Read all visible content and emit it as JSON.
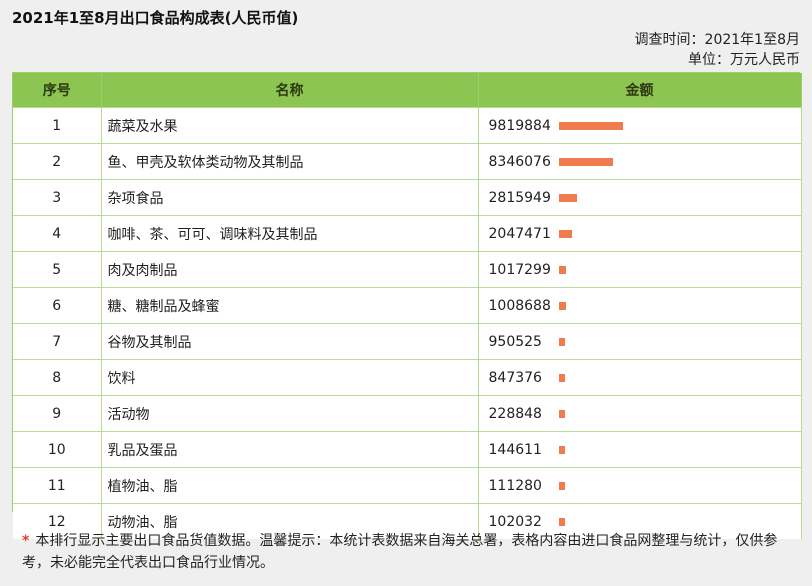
{
  "title": "2021年1至8月出口食品构成表(人民币值)",
  "meta": {
    "survey_time": "调查时间：2021年1至8月",
    "unit": "单位：万元人民币"
  },
  "table": {
    "headers": [
      "序号",
      "名称",
      "金额"
    ],
    "rows": [
      {
        "no": "1",
        "name": "蔬菜及水果",
        "amount": "9819884"
      },
      {
        "no": "2",
        "name": "鱼、甲壳及软体类动物及其制品",
        "amount": "8346076"
      },
      {
        "no": "3",
        "name": "杂项食品",
        "amount": "2815949"
      },
      {
        "no": "4",
        "name": "咖啡、茶、可可、调味料及其制品",
        "amount": "2047471"
      },
      {
        "no": "5",
        "name": "肉及肉制品",
        "amount": "1017299"
      },
      {
        "no": "6",
        "name": "糖、糖制品及蜂蜜",
        "amount": "1008688"
      },
      {
        "no": "7",
        "name": "谷物及其制品",
        "amount": "950525"
      },
      {
        "no": "8",
        "name": "饮料",
        "amount": "847376"
      },
      {
        "no": "9",
        "name": "活动物",
        "amount": "228848"
      },
      {
        "no": "10",
        "name": "乳品及蛋品",
        "amount": "144611"
      },
      {
        "no": "11",
        "name": "植物油、脂",
        "amount": "111280"
      },
      {
        "no": "12",
        "name": "动物油、脂",
        "amount": "102032"
      }
    ]
  },
  "note": {
    "star": "*",
    "text": "本排行显示主要出口食品货值数据。温馨提示：本统计表数据来自海关总署，表格内容由进口食品网整理与统计，仅供参考，未必能完全代表出口食品行业情况。"
  },
  "colors": {
    "header_bg": "#8cc552",
    "bar": "#ef7b4f",
    "note_star": "#e03b2e"
  }
}
